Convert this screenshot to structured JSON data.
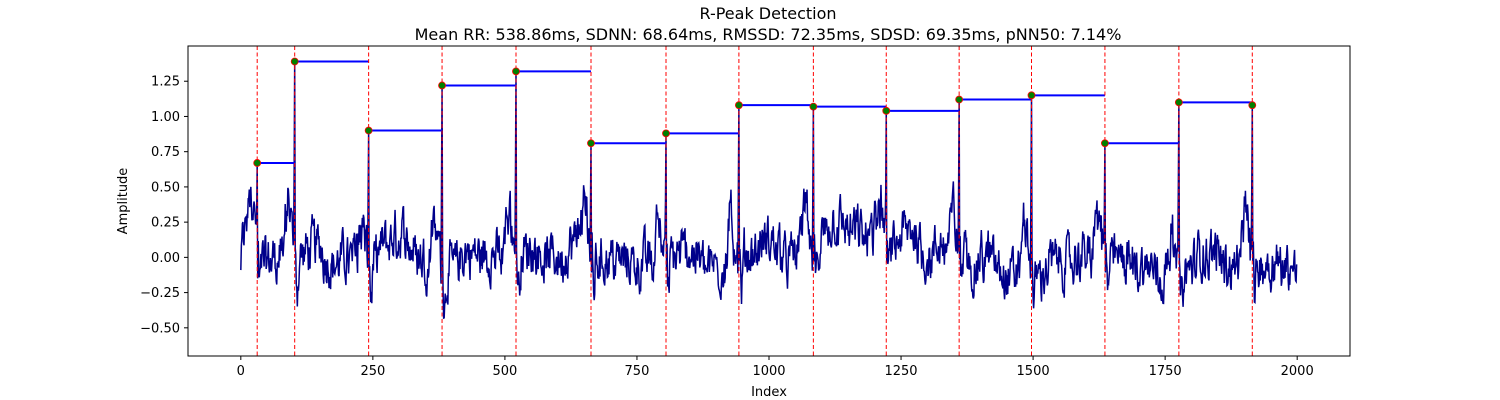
{
  "chart_data": {
    "type": "line",
    "title": "R-Peak Detection",
    "subtitle": "Mean RR: 538.86ms, SDNN: 68.64ms, RMSSD: 72.35ms, SDSD: 69.35ms, pNN50: 7.14%",
    "xlabel": "Index",
    "ylabel": "Amplitude",
    "xlim": [
      -100,
      2100
    ],
    "ylim": [
      -0.7,
      1.5
    ],
    "xticks": [
      0,
      250,
      500,
      750,
      1000,
      1250,
      1500,
      1750,
      2000
    ],
    "xtick_labels": [
      "0",
      "250",
      "500",
      "750",
      "1000",
      "1250",
      "1500",
      "1750",
      "2000"
    ],
    "yticks": [
      -0.5,
      -0.25,
      0.0,
      0.25,
      0.5,
      0.75,
      1.0,
      1.25
    ],
    "ytick_labels": [
      "−0.50",
      "−0.25",
      "0.00",
      "0.25",
      "0.50",
      "0.75",
      "1.00",
      "1.25"
    ],
    "grid": false,
    "signal": {
      "color": "#00008b",
      "length": 2000,
      "start_value": -0.09,
      "end_value": -0.05
    },
    "r_peaks": {
      "marker_color": "#008000",
      "marker_edge_color": "#ff0000",
      "line_color": "#ff0000",
      "indices": [
        31,
        102,
        242,
        381,
        521,
        663,
        805,
        943,
        1084,
        1222,
        1360,
        1497,
        1636,
        1776,
        1915
      ],
      "amplitudes": [
        0.67,
        1.39,
        0.9,
        1.22,
        1.32,
        0.81,
        0.88,
        1.08,
        1.07,
        1.04,
        1.12,
        1.15,
        0.81,
        1.1,
        1.08
      ]
    },
    "rr_segments": {
      "color": "#0000ff",
      "segments": [
        {
          "x_start": 31,
          "x_end": 102,
          "y": 0.67
        },
        {
          "x_start": 102,
          "x_end": 242,
          "y": 1.39
        },
        {
          "x_start": 242,
          "x_end": 381,
          "y": 0.9
        },
        {
          "x_start": 381,
          "x_end": 521,
          "y": 1.22
        },
        {
          "x_start": 521,
          "x_end": 663,
          "y": 1.32
        },
        {
          "x_start": 663,
          "x_end": 805,
          "y": 0.81
        },
        {
          "x_start": 805,
          "x_end": 943,
          "y": 0.88
        },
        {
          "x_start": 943,
          "x_end": 1084,
          "y": 1.08
        },
        {
          "x_start": 1084,
          "x_end": 1222,
          "y": 1.07
        },
        {
          "x_start": 1222,
          "x_end": 1360,
          "y": 1.04
        },
        {
          "x_start": 1360,
          "x_end": 1497,
          "y": 1.12
        },
        {
          "x_start": 1497,
          "x_end": 1636,
          "y": 1.15
        },
        {
          "x_start": 1636,
          "x_end": 1776,
          "y": 0.81
        },
        {
          "x_start": 1776,
          "x_end": 1915,
          "y": 1.1
        }
      ]
    }
  }
}
